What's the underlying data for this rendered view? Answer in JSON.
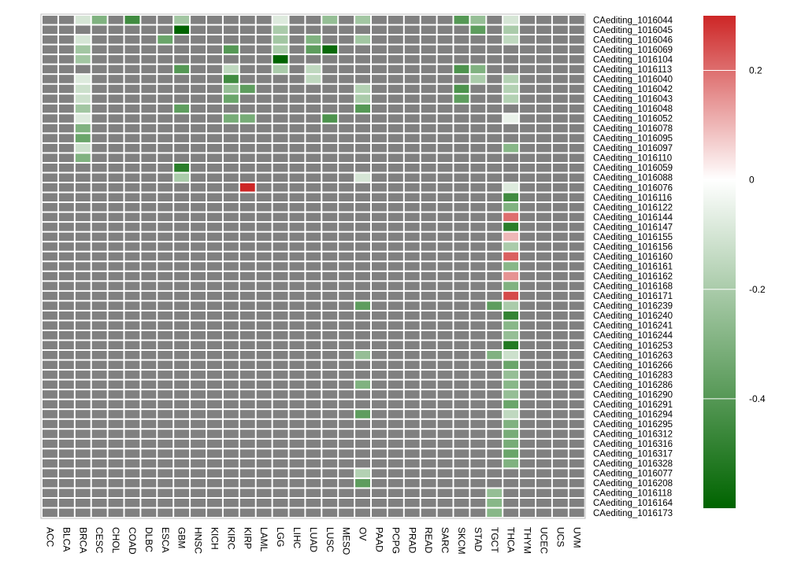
{
  "chart_data": {
    "type": "heatmap",
    "title": "",
    "xlabel": "",
    "ylabel": "",
    "columns": [
      "ACC",
      "BLCA",
      "BRCA",
      "CESC",
      "CHOL",
      "COAD",
      "DLBC",
      "ESCA",
      "GBM",
      "HNSC",
      "KICH",
      "KIRC",
      "KIRP",
      "LAML",
      "LGG",
      "LIHC",
      "LUAD",
      "LUSC",
      "MESO",
      "OV",
      "PAAD",
      "PCPG",
      "PRAD",
      "READ",
      "SARC",
      "SKCM",
      "STAD",
      "TGCT",
      "THCA",
      "THYM",
      "UCEC",
      "UCS",
      "UVM"
    ],
    "rows": [
      "CAediting_1016044",
      "CAediting_1016045",
      "CAediting_1016046",
      "CAediting_1016069",
      "CAediting_1016104",
      "CAediting_1016113",
      "CAediting_1016040",
      "CAediting_1016042",
      "CAediting_1016043",
      "CAediting_1016048",
      "CAediting_1016052",
      "CAediting_1016078",
      "CAediting_1016095",
      "CAediting_1016097",
      "CAediting_1016110",
      "CAediting_1016059",
      "CAediting_1016088",
      "CAediting_1016076",
      "CAediting_1016116",
      "CAediting_1016122",
      "CAediting_1016144",
      "CAediting_1016147",
      "CAediting_1016155",
      "CAediting_1016156",
      "CAediting_1016160",
      "CAediting_1016161",
      "CAediting_1016162",
      "CAediting_1016168",
      "CAediting_1016171",
      "CAediting_1016239",
      "CAediting_1016240",
      "CAediting_1016241",
      "CAediting_1016244",
      "CAediting_1016253",
      "CAediting_1016263",
      "CAediting_1016266",
      "CAediting_1016283",
      "CAediting_1016286",
      "CAediting_1016290",
      "CAediting_1016291",
      "CAediting_1016294",
      "CAediting_1016295",
      "CAediting_1016312",
      "CAediting_1016316",
      "CAediting_1016317",
      "CAediting_1016328",
      "CAediting_1016077",
      "CAediting_1016208",
      "CAediting_1016118",
      "CAediting_1016164",
      "CAediting_1016173"
    ],
    "na_color": "#808080",
    "color_scale": {
      "min": -0.6,
      "max": 0.3,
      "stops": [
        {
          "value": -0.6,
          "color": "#006400"
        },
        {
          "value": 0.0,
          "color": "#ffffff"
        },
        {
          "value": 0.3,
          "color": "#cd2626"
        }
      ],
      "ticks": [
        {
          "value": 0.2,
          "label": "0.2"
        },
        {
          "value": 0,
          "label": "0"
        },
        {
          "value": -0.2,
          "label": "-0.2"
        },
        {
          "value": -0.4,
          "label": "-0.4"
        }
      ]
    },
    "cells": [
      {
        "row": "CAediting_1016044",
        "col": "BRCA",
        "value": -0.1
      },
      {
        "row": "CAediting_1016044",
        "col": "CESC",
        "value": -0.3
      },
      {
        "row": "CAediting_1016044",
        "col": "COAD",
        "value": -0.45
      },
      {
        "row": "CAediting_1016044",
        "col": "GBM",
        "value": -0.22
      },
      {
        "row": "CAediting_1016044",
        "col": "LGG",
        "value": -0.08
      },
      {
        "row": "CAediting_1016044",
        "col": "LUSC",
        "value": -0.25
      },
      {
        "row": "CAediting_1016044",
        "col": "OV",
        "value": -0.22
      },
      {
        "row": "CAediting_1016044",
        "col": "SKCM",
        "value": -0.4
      },
      {
        "row": "CAediting_1016044",
        "col": "STAD",
        "value": -0.25
      },
      {
        "row": "CAediting_1016044",
        "col": "THCA",
        "value": -0.1
      },
      {
        "row": "CAediting_1016045",
        "col": "GBM",
        "value": -0.6
      },
      {
        "row": "CAediting_1016045",
        "col": "LGG",
        "value": -0.2
      },
      {
        "row": "CAediting_1016045",
        "col": "STAD",
        "value": -0.38
      },
      {
        "row": "CAediting_1016045",
        "col": "THCA",
        "value": -0.2
      },
      {
        "row": "CAediting_1016046",
        "col": "BRCA",
        "value": -0.1
      },
      {
        "row": "CAediting_1016046",
        "col": "ESCA",
        "value": -0.35
      },
      {
        "row": "CAediting_1016046",
        "col": "LGG",
        "value": -0.22
      },
      {
        "row": "CAediting_1016046",
        "col": "LUAD",
        "value": -0.3
      },
      {
        "row": "CAediting_1016046",
        "col": "OV",
        "value": -0.22
      },
      {
        "row": "CAediting_1016046",
        "col": "THCA",
        "value": -0.15
      },
      {
        "row": "CAediting_1016069",
        "col": "BRCA",
        "value": -0.22
      },
      {
        "row": "CAediting_1016069",
        "col": "KIRC",
        "value": -0.4
      },
      {
        "row": "CAediting_1016069",
        "col": "LGG",
        "value": -0.2
      },
      {
        "row": "CAediting_1016069",
        "col": "LUAD",
        "value": -0.38
      },
      {
        "row": "CAediting_1016069",
        "col": "LUSC",
        "value": -0.58
      },
      {
        "row": "CAediting_1016104",
        "col": "BRCA",
        "value": -0.22
      },
      {
        "row": "CAediting_1016104",
        "col": "LGG",
        "value": -0.62
      },
      {
        "row": "CAediting_1016113",
        "col": "GBM",
        "value": -0.4
      },
      {
        "row": "CAediting_1016113",
        "col": "KIRC",
        "value": -0.15
      },
      {
        "row": "CAediting_1016113",
        "col": "LGG",
        "value": -0.2
      },
      {
        "row": "CAediting_1016113",
        "col": "LUAD",
        "value": -0.15
      },
      {
        "row": "CAediting_1016113",
        "col": "SKCM",
        "value": -0.42
      },
      {
        "row": "CAediting_1016113",
        "col": "STAD",
        "value": -0.3
      },
      {
        "row": "CAediting_1016040",
        "col": "BRCA",
        "value": -0.08
      },
      {
        "row": "CAediting_1016040",
        "col": "KIRC",
        "value": -0.45
      },
      {
        "row": "CAediting_1016040",
        "col": "LUAD",
        "value": -0.15
      },
      {
        "row": "CAediting_1016040",
        "col": "STAD",
        "value": -0.2
      },
      {
        "row": "CAediting_1016040",
        "col": "THCA",
        "value": -0.18
      },
      {
        "row": "CAediting_1016042",
        "col": "BRCA",
        "value": -0.12
      },
      {
        "row": "CAediting_1016042",
        "col": "KIRC",
        "value": -0.25
      },
      {
        "row": "CAediting_1016042",
        "col": "KIRP",
        "value": -0.38
      },
      {
        "row": "CAediting_1016042",
        "col": "OV",
        "value": -0.18
      },
      {
        "row": "CAediting_1016042",
        "col": "SKCM",
        "value": -0.42
      },
      {
        "row": "CAediting_1016042",
        "col": "THCA",
        "value": -0.18
      },
      {
        "row": "CAediting_1016043",
        "col": "BRCA",
        "value": -0.12
      },
      {
        "row": "CAediting_1016043",
        "col": "KIRC",
        "value": -0.35
      },
      {
        "row": "CAediting_1016043",
        "col": "OV",
        "value": -0.2
      },
      {
        "row": "CAediting_1016043",
        "col": "SKCM",
        "value": -0.38
      },
      {
        "row": "CAediting_1016043",
        "col": "THCA",
        "value": -0.18
      },
      {
        "row": "CAediting_1016048",
        "col": "BRCA",
        "value": -0.22
      },
      {
        "row": "CAediting_1016048",
        "col": "GBM",
        "value": -0.38
      },
      {
        "row": "CAediting_1016048",
        "col": "OV",
        "value": -0.4
      },
      {
        "row": "CAediting_1016052",
        "col": "BRCA",
        "value": -0.08
      },
      {
        "row": "CAediting_1016052",
        "col": "KIRC",
        "value": -0.32
      },
      {
        "row": "CAediting_1016052",
        "col": "KIRP",
        "value": -0.32
      },
      {
        "row": "CAediting_1016052",
        "col": "LUSC",
        "value": -0.42
      },
      {
        "row": "CAediting_1016052",
        "col": "THCA",
        "value": -0.05
      },
      {
        "row": "CAediting_1016078",
        "col": "BRCA",
        "value": -0.3
      },
      {
        "row": "CAediting_1016095",
        "col": "BRCA",
        "value": -0.35
      },
      {
        "row": "CAediting_1016097",
        "col": "BRCA",
        "value": -0.12
      },
      {
        "row": "CAediting_1016097",
        "col": "THCA",
        "value": -0.28
      },
      {
        "row": "CAediting_1016110",
        "col": "BRCA",
        "value": -0.3
      },
      {
        "row": "CAediting_1016059",
        "col": "GBM",
        "value": -0.5
      },
      {
        "row": "CAediting_1016088",
        "col": "GBM",
        "value": -0.2
      },
      {
        "row": "CAediting_1016088",
        "col": "OV",
        "value": -0.1
      },
      {
        "row": "CAediting_1016076",
        "col": "KIRP",
        "value": 0.3
      },
      {
        "row": "CAediting_1016076",
        "col": "THCA",
        "value": -0.08
      },
      {
        "row": "CAediting_1016116",
        "col": "THCA",
        "value": -0.45
      },
      {
        "row": "CAediting_1016122",
        "col": "THCA",
        "value": -0.3
      },
      {
        "row": "CAediting_1016144",
        "col": "THCA",
        "value": 0.2
      },
      {
        "row": "CAediting_1016147",
        "col": "THCA",
        "value": -0.5
      },
      {
        "row": "CAediting_1016155",
        "col": "THCA",
        "value": 0.1
      },
      {
        "row": "CAediting_1016156",
        "col": "THCA",
        "value": -0.2
      },
      {
        "row": "CAediting_1016160",
        "col": "THCA",
        "value": 0.22
      },
      {
        "row": "CAediting_1016161",
        "col": "THCA",
        "value": -0.28
      },
      {
        "row": "CAediting_1016162",
        "col": "THCA",
        "value": 0.15
      },
      {
        "row": "CAediting_1016168",
        "col": "THCA",
        "value": -0.3
      },
      {
        "row": "CAediting_1016171",
        "col": "THCA",
        "value": 0.25
      },
      {
        "row": "CAediting_1016239",
        "col": "OV",
        "value": -0.38
      },
      {
        "row": "CAediting_1016239",
        "col": "TGCT",
        "value": -0.38
      },
      {
        "row": "CAediting_1016239",
        "col": "THCA",
        "value": -0.2
      },
      {
        "row": "CAediting_1016240",
        "col": "THCA",
        "value": -0.48
      },
      {
        "row": "CAediting_1016241",
        "col": "THCA",
        "value": -0.28
      },
      {
        "row": "CAediting_1016244",
        "col": "THCA",
        "value": -0.25
      },
      {
        "row": "CAediting_1016253",
        "col": "THCA",
        "value": -0.52
      },
      {
        "row": "CAediting_1016263",
        "col": "OV",
        "value": -0.25
      },
      {
        "row": "CAediting_1016263",
        "col": "TGCT",
        "value": -0.3
      },
      {
        "row": "CAediting_1016263",
        "col": "THCA",
        "value": -0.12
      },
      {
        "row": "CAediting_1016266",
        "col": "THCA",
        "value": -0.35
      },
      {
        "row": "CAediting_1016283",
        "col": "THCA",
        "value": -0.25
      },
      {
        "row": "CAediting_1016286",
        "col": "OV",
        "value": -0.3
      },
      {
        "row": "CAediting_1016286",
        "col": "THCA",
        "value": -0.28
      },
      {
        "row": "CAediting_1016290",
        "col": "THCA",
        "value": -0.25
      },
      {
        "row": "CAediting_1016291",
        "col": "THCA",
        "value": -0.35
      },
      {
        "row": "CAediting_1016294",
        "col": "OV",
        "value": -0.38
      },
      {
        "row": "CAediting_1016294",
        "col": "THCA",
        "value": -0.15
      },
      {
        "row": "CAediting_1016295",
        "col": "THCA",
        "value": -0.3
      },
      {
        "row": "CAediting_1016312",
        "col": "THCA",
        "value": -0.32
      },
      {
        "row": "CAediting_1016316",
        "col": "THCA",
        "value": -0.32
      },
      {
        "row": "CAediting_1016317",
        "col": "THCA",
        "value": -0.35
      },
      {
        "row": "CAediting_1016328",
        "col": "THCA",
        "value": -0.3
      },
      {
        "row": "CAediting_1016077",
        "col": "OV",
        "value": -0.18
      },
      {
        "row": "CAediting_1016208",
        "col": "OV",
        "value": -0.38
      },
      {
        "row": "CAediting_1016118",
        "col": "TGCT",
        "value": -0.25
      },
      {
        "row": "CAediting_1016164",
        "col": "TGCT",
        "value": -0.28
      },
      {
        "row": "CAediting_1016173",
        "col": "TGCT",
        "value": -0.28
      }
    ]
  }
}
